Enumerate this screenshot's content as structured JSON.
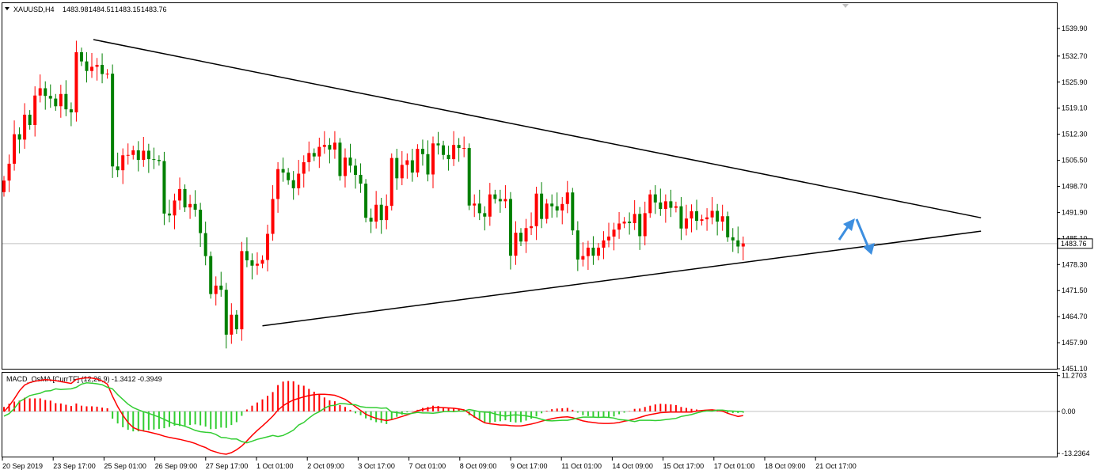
{
  "chart_data": [
    {
      "type": "candlestick",
      "title": "XAUUSD,H4",
      "ohlc_header": [
        "1483.98",
        "1484.51",
        "1483.15",
        "1483.76"
      ],
      "current_price": 1483.76,
      "current_price_label": "1483.76",
      "ylim": [
        1451.1,
        1546.5
      ],
      "y_ticks": [
        1539.9,
        1532.7,
        1525.9,
        1519.1,
        1512.3,
        1505.5,
        1498.7,
        1491.9,
        1485.1,
        1478.3,
        1471.5,
        1464.7,
        1457.9,
        1451.1
      ],
      "y_tick_labels": [
        "1539.90",
        "1532.70",
        "1525.90",
        "1519.10",
        "1512.30",
        "1505.50",
        "1498.70",
        "1491.90",
        "1485.10",
        "1478.30",
        "1471.50",
        "1464.70",
        "1457.90",
        "1451.10"
      ],
      "x_tick_labels": [
        "20 Sep 2019",
        "23 Sep 17:00",
        "25 Sep 01:00",
        "26 Sep 09:00",
        "27 Sep 17:00",
        "1 Oct 01:00",
        "2 Oct 09:00",
        "3 Oct 17:00",
        "7 Oct 01:00",
        "8 Oct 09:00",
        "9 Oct 17:00",
        "11 Oct 01:00",
        "14 Oct 09:00",
        "15 Oct 17:00",
        "17 Oct 01:00",
        "18 Oct 09:00",
        "21 Oct 17:00"
      ],
      "bull_color": "#ff0000",
      "bear_color": "#008000",
      "close": [
        1500.2,
        1504.6,
        1512.3,
        1510.9,
        1517.4,
        1514.7,
        1522.4,
        1524.3,
        1522.3,
        1521.6,
        1519.6,
        1522.8,
        1518.8,
        1518.0,
        1533.7,
        1531.3,
        1528.8,
        1529.9,
        1530.4,
        1528.0,
        1528.1,
        1503.9,
        1502.9,
        1506.8,
        1506.9,
        1508.1,
        1505.6,
        1508.0,
        1505.8,
        1505.6,
        1505.3,
        1491.6,
        1491.1,
        1495.0,
        1498.0,
        1493.2,
        1494.1,
        1492.6,
        1486.5,
        1480.5,
        1470.6,
        1472.8,
        1471.7,
        1460.0,
        1465.2,
        1461.4,
        1481.8,
        1479.4,
        1478.0,
        1478.5,
        1479.5,
        1486.3,
        1495.4,
        1503.2,
        1502.3,
        1500.3,
        1498.2,
        1502.0,
        1505.0,
        1507.4,
        1506.5,
        1509.0,
        1509.5,
        1508.3,
        1510.1,
        1501.4,
        1506.2,
        1504.1,
        1501.7,
        1499.4,
        1490.5,
        1489.5,
        1493.9,
        1489.9,
        1493.6,
        1506.1,
        1500.8,
        1504.3,
        1505.5,
        1502.3,
        1508.5,
        1507.1,
        1501.8,
        1509.9,
        1509.4,
        1506.9,
        1505.8,
        1509.5,
        1508.7,
        1508.7,
        1493.7,
        1494.2,
        1491.7,
        1490.8,
        1496.6,
        1495.4,
        1494.8,
        1495.4,
        1480.6,
        1486.6,
        1484.3,
        1487.8,
        1488.3,
        1496.8,
        1490.2,
        1494.2,
        1493.5,
        1492.4,
        1494.1,
        1497.1,
        1487.2,
        1479.6,
        1480.5,
        1482.7,
        1480.6,
        1482.7,
        1484.6,
        1485.6,
        1487.4,
        1489.0,
        1489.5,
        1489.1,
        1491.5,
        1485.7,
        1491.7,
        1496.6,
        1494.5,
        1492.8,
        1494.8,
        1493.1,
        1493.5,
        1487.7,
        1490.3,
        1492.2,
        1489.7,
        1490.1,
        1490.6,
        1492.3,
        1489.5,
        1490.9,
        1485.4,
        1484.6,
        1483.0,
        1483.8
      ],
      "note_open_rule": "open of each candle equals previous close"
    },
    {
      "type": "macd_osma",
      "title": "MACD_OsMA [CurrTF] (12,26,9) -1.3412 -0.3949",
      "ylim": [
        -14.25,
        12.2
      ],
      "y_ticks": [
        11.2703,
        0.0,
        -13.2364
      ],
      "y_tick_labels": [
        "11.2703",
        "0.00",
        "-13.2364"
      ],
      "histogram_up_color": "#ff0000",
      "histogram_down_color": "#32cd32",
      "histogram": [
        1.4,
        2.4,
        3.1,
        3.4,
        4.3,
        4.1,
        4.1,
        4.1,
        3.6,
        3.4,
        2.6,
        2.5,
        2.1,
        1.7,
        2.5,
        1.8,
        1.6,
        1.6,
        1.5,
        1.2,
        1.0,
        -2.3,
        -3.8,
        -5.0,
        -5.8,
        -6.3,
        -6.3,
        -6.1,
        -5.9,
        -5.7,
        -5.5,
        -5.3,
        -4.9,
        -4.5,
        -4.6,
        -4.5,
        -4.3,
        -4.1,
        -4.4,
        -4.8,
        -5.6,
        -5.5,
        -5.1,
        -5.2,
        -4.3,
        -3.4,
        -1.4,
        0.6,
        1.8,
        2.8,
        3.8,
        4.9,
        6.1,
        8.3,
        9.4,
        9.6,
        9.5,
        8.4,
        8.1,
        7.1,
        6.2,
        5.5,
        4.4,
        3.5,
        3.2,
        2.0,
        1.4,
        0.5,
        -0.6,
        -1.2,
        -2.2,
        -2.8,
        -3.4,
        -3.6,
        -4.0,
        -2.4,
        -1.7,
        -1.0,
        -0.3,
        0.1,
        0.5,
        1.1,
        1.4,
        1.8,
        1.7,
        1.3,
        1.1,
        1.1,
        0.7,
        0.4,
        -1.2,
        -2.0,
        -2.6,
        -3.4,
        -3.6,
        -3.3,
        -3.1,
        -2.8,
        -3.3,
        -3.5,
        -3.4,
        -2.9,
        -2.3,
        -1.6,
        -0.6,
        0.2,
        0.7,
        0.9,
        1.0,
        1.1,
        0.5,
        -0.4,
        -1.2,
        -1.5,
        -1.7,
        -1.8,
        -2.0,
        -1.9,
        -1.6,
        -0.9,
        -0.4,
        0.1,
        0.8,
        0.9,
        1.4,
        1.8,
        2.2,
        2.4,
        2.3,
        2.2,
        2.0,
        1.4,
        1.1,
        0.8,
        0.6,
        0.4,
        0.2,
        0.4,
        0.1,
        -0.1,
        -0.4,
        -0.5,
        -0.5,
        -0.4
      ],
      "series": [
        {
          "color": "#ff0000",
          "values": [
            -0.1,
            1.7,
            4.0,
            6.5,
            8.3,
            9.1,
            9.5,
            9.8,
            10.0,
            9.9,
            9.7,
            9.4,
            9.1,
            8.8,
            10.1,
            10.4,
            10.6,
            10.5,
            10.2,
            9.6,
            8.6,
            4.8,
            1.5,
            -1.2,
            -3.5,
            -5.1,
            -5.8,
            -6.2,
            -6.5,
            -6.9,
            -7.3,
            -7.8,
            -8.2,
            -8.5,
            -8.8,
            -9.2,
            -9.6,
            -10.1,
            -10.8,
            -11.4,
            -12.3,
            -12.8,
            -13.3,
            -13.5,
            -13.0,
            -12.1,
            -10.9,
            -9.3,
            -7.6,
            -6.0,
            -4.6,
            -3.1,
            -1.5,
            0.4,
            1.8,
            2.8,
            3.6,
            4.1,
            4.6,
            5.0,
            5.3,
            5.4,
            5.4,
            5.3,
            5.1,
            4.5,
            3.8,
            2.7,
            1.5,
            0.3,
            -0.9,
            -1.6,
            -2.2,
            -2.6,
            -2.9,
            -2.6,
            -2.1,
            -1.6,
            -1.1,
            -0.5,
            0.2,
            0.6,
            0.9,
            1.2,
            1.3,
            1.2,
            1.1,
            1.0,
            0.8,
            0.5,
            -0.6,
            -1.7,
            -2.7,
            -3.6,
            -3.9,
            -4.1,
            -4.3,
            -4.3,
            -4.5,
            -4.6,
            -4.6,
            -4.3,
            -4.0,
            -3.6,
            -3.1,
            -2.7,
            -2.3,
            -2.0,
            -1.8,
            -1.7,
            -2.0,
            -2.5,
            -3.0,
            -3.3,
            -3.5,
            -3.7,
            -3.8,
            -3.8,
            -3.7,
            -3.5,
            -3.1,
            -2.8,
            -2.4,
            -1.9,
            -1.4,
            -1.0,
            -0.7,
            -0.4,
            -0.3,
            -0.2,
            -0.2,
            -0.2,
            -0.2,
            -0.2,
            0.1,
            0.3,
            0.4,
            0.5,
            0.3,
            0.1,
            -0.6,
            -1.1,
            -1.6,
            -1.3
          ]
        },
        {
          "color": "#32cd32",
          "values": [
            -1.5,
            -0.7,
            0.9,
            3.1,
            4.0,
            5.0,
            5.4,
            5.7,
            6.4,
            6.5,
            7.1,
            6.9,
            7.0,
            7.1,
            7.6,
            8.6,
            9.0,
            8.9,
            8.7,
            8.4,
            7.6,
            7.1,
            5.3,
            3.8,
            2.3,
            1.2,
            0.5,
            -0.1,
            -0.6,
            -1.2,
            -1.8,
            -2.5,
            -3.3,
            -4.0,
            -4.2,
            -4.7,
            -5.3,
            -6.0,
            -6.4,
            -6.6,
            -6.7,
            -7.3,
            -8.2,
            -8.3,
            -8.7,
            -8.7,
            -9.5,
            -9.9,
            -9.4,
            -8.8,
            -8.4,
            -8.0,
            -7.6,
            -7.9,
            -7.6,
            -6.8,
            -5.9,
            -4.3,
            -3.5,
            -2.1,
            -0.9,
            -0.1,
            1.0,
            1.8,
            1.9,
            2.5,
            2.4,
            2.2,
            2.1,
            1.5,
            1.3,
            1.2,
            1.2,
            1.0,
            1.1,
            -0.2,
            -0.4,
            -0.6,
            -0.8,
            -0.6,
            -0.3,
            -0.5,
            -0.5,
            -0.6,
            -0.4,
            -0.1,
            0.0,
            -0.1,
            0.1,
            0.1,
            0.6,
            0.3,
            -0.1,
            -0.2,
            -0.3,
            -0.8,
            -1.2,
            -1.5,
            -1.2,
            -1.1,
            -1.2,
            -1.4,
            -1.7,
            -2.0,
            -2.5,
            -2.9,
            -3.0,
            -2.9,
            -2.8,
            -2.8,
            -2.5,
            -2.1,
            -1.8,
            -1.8,
            -1.8,
            -1.9,
            -1.8,
            -1.9,
            -2.1,
            -2.6,
            -2.7,
            -2.9,
            -3.2,
            -2.8,
            -2.8,
            -2.8,
            -2.9,
            -2.8,
            -2.6,
            -2.4,
            -2.2,
            -1.6,
            -1.3,
            -1.0,
            -0.5,
            -0.1,
            0.2,
            0.1,
            0.4,
            0.4,
            0.2,
            0.1,
            0.0,
            -0.1
          ]
        }
      ]
    }
  ],
  "annotations": {
    "triangle_upper": [
      [
        1537.0,
        0
      ],
      [
        1490.5,
        154
      ]
    ],
    "triangle_lower": [
      [
        1462.3,
        4
      ],
      [
        1487.0,
        154
      ]
    ],
    "line_color": "#000000",
    "arrow_color": "#3d8fe0"
  }
}
